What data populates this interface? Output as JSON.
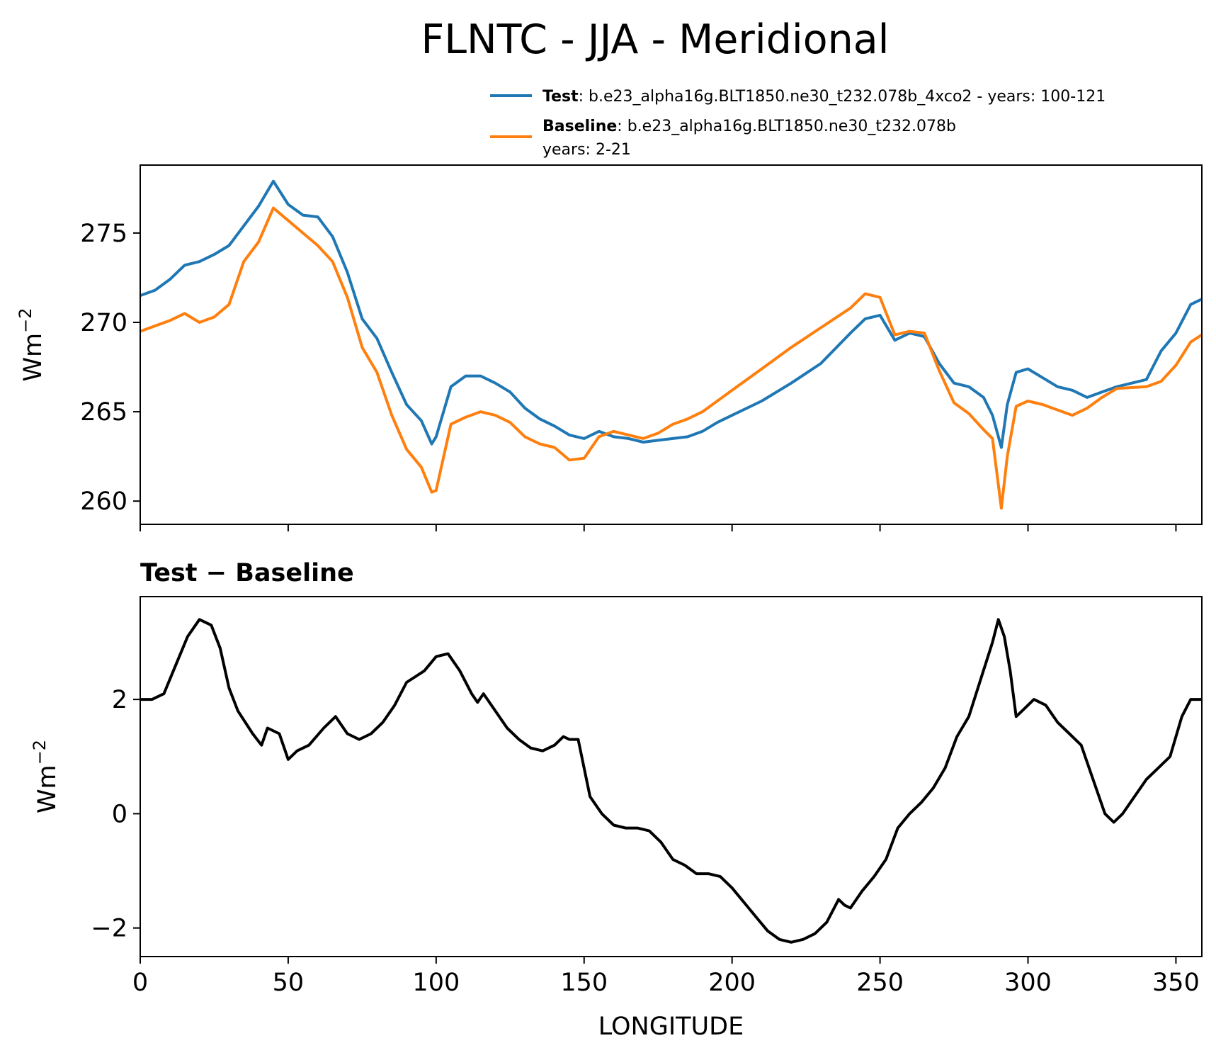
{
  "title": "FLNTC - JJA - Meridional",
  "colors": {
    "test": "#1f77b4",
    "baseline": "#ff7f0e",
    "diff": "#000000",
    "axis": "#000000"
  },
  "legend": {
    "placement": "above top panel, right",
    "test_bold": "Test",
    "test_text": ": b.e23_alpha16g.BLT1850.ne30_t232.078b_4xco2 - years: 100-121",
    "baseline_bold": "Baseline",
    "baseline_text": ": b.e23_alpha16g.BLT1850.ne30_t232.078b",
    "baseline_text2": "years: 2-21"
  },
  "chart_data": [
    {
      "type": "line",
      "title": "",
      "xlabel": "",
      "ylabel": "Wm",
      "ylabel_sup": "−2",
      "xlim": [
        0,
        358.75
      ],
      "ylim": [
        258.7,
        278.8
      ],
      "yticks": [
        260,
        265,
        270,
        275
      ],
      "ytick_labels": [
        "260",
        "265",
        "270",
        "275"
      ],
      "xticks": [
        0,
        50,
        100,
        150,
        200,
        250,
        300,
        350
      ],
      "series": [
        {
          "name": "Test",
          "x": [
            0,
            5,
            10,
            15,
            20,
            25,
            30,
            35,
            40,
            45,
            50,
            55,
            60,
            65,
            70,
            75,
            80,
            85,
            90,
            95,
            98.5,
            100,
            105,
            110,
            115,
            120,
            125,
            130,
            135,
            140,
            145,
            150,
            155,
            160,
            165,
            170,
            175,
            180,
            185,
            190,
            195,
            200,
            210,
            220,
            230,
            240,
            245,
            250,
            255,
            260,
            265,
            270,
            275,
            280,
            285,
            288,
            291,
            293,
            296,
            300,
            305,
            310,
            315,
            320,
            325,
            330,
            340,
            345,
            350,
            355,
            358.75
          ],
          "values": [
            271.5,
            271.8,
            272.4,
            273.2,
            273.4,
            273.8,
            274.3,
            275.4,
            276.5,
            277.9,
            276.6,
            276.0,
            275.9,
            274.8,
            272.8,
            270.2,
            269.1,
            267.2,
            265.4,
            264.5,
            263.2,
            263.6,
            266.4,
            267.0,
            267.0,
            266.6,
            266.1,
            265.2,
            264.6,
            264.2,
            263.7,
            263.5,
            263.9,
            263.6,
            263.5,
            263.3,
            263.4,
            263.5,
            263.6,
            263.9,
            264.4,
            264.8,
            265.6,
            266.6,
            267.7,
            269.4,
            270.2,
            270.4,
            269.0,
            269.4,
            269.2,
            267.7,
            266.6,
            266.4,
            265.8,
            264.8,
            263.0,
            265.4,
            267.2,
            267.4,
            266.9,
            266.4,
            266.2,
            265.8,
            266.1,
            266.4,
            266.8,
            268.4,
            269.4,
            271.0,
            271.3
          ]
        },
        {
          "name": "Baseline",
          "x": [
            0,
            5,
            10,
            15,
            20,
            25,
            30,
            35,
            40,
            45,
            50,
            55,
            60,
            65,
            70,
            75,
            80,
            85,
            90,
            95,
            98.5,
            100,
            105,
            110,
            115,
            120,
            125,
            130,
            135,
            140,
            145,
            150,
            155,
            160,
            165,
            170,
            175,
            180,
            185,
            190,
            195,
            200,
            210,
            220,
            230,
            240,
            245,
            250,
            255,
            260,
            265,
            270,
            275,
            280,
            285,
            288,
            291,
            293,
            296,
            300,
            305,
            310,
            315,
            320,
            325,
            330,
            340,
            345,
            350,
            355,
            358.75
          ],
          "values": [
            269.5,
            269.8,
            270.1,
            270.5,
            270.0,
            270.3,
            271.0,
            273.4,
            274.5,
            276.4,
            275.7,
            275.0,
            274.3,
            273.4,
            271.4,
            268.6,
            267.2,
            264.8,
            262.9,
            261.9,
            260.5,
            260.6,
            264.3,
            264.7,
            265.0,
            264.8,
            264.4,
            263.6,
            263.2,
            263.0,
            262.3,
            262.4,
            263.6,
            263.9,
            263.7,
            263.5,
            263.8,
            264.3,
            264.6,
            265.0,
            265.6,
            266.2,
            267.4,
            268.6,
            269.7,
            270.8,
            271.6,
            271.4,
            269.3,
            269.5,
            269.4,
            267.3,
            265.5,
            264.9,
            264.0,
            263.5,
            259.6,
            262.5,
            265.3,
            265.6,
            265.4,
            265.1,
            264.8,
            265.2,
            265.8,
            266.3,
            266.4,
            266.7,
            267.6,
            268.9,
            269.3
          ]
        }
      ]
    },
    {
      "type": "line",
      "title": "Test − Baseline",
      "xlabel": "LONGITUDE",
      "ylabel": "Wm",
      "ylabel_sup": "−2",
      "xlim": [
        0,
        358.75
      ],
      "ylim": [
        -2.5,
        3.8
      ],
      "yticks": [
        -2,
        0,
        2
      ],
      "ytick_labels": [
        "−2",
        "0",
        "2"
      ],
      "xticks": [
        0,
        50,
        100,
        150,
        200,
        250,
        300,
        350
      ],
      "xtick_labels": [
        "0",
        "50",
        "100",
        "150",
        "200",
        "250",
        "300",
        "350"
      ],
      "series": [
        {
          "name": "Test − Baseline",
          "x": [
            0,
            4,
            8,
            12,
            16,
            20,
            24,
            27,
            30,
            33,
            38,
            41,
            43,
            47,
            50,
            53,
            57,
            62,
            66,
            70,
            74,
            78,
            82,
            86,
            90,
            96,
            100,
            104,
            108,
            112,
            114,
            116,
            120,
            124,
            128,
            132,
            136,
            140,
            143,
            145,
            148,
            152,
            156,
            160,
            164,
            168,
            172,
            176,
            180,
            184,
            188,
            192,
            196,
            200,
            204,
            208,
            212,
            216,
            220,
            224,
            228,
            232,
            236,
            238,
            240,
            244,
            248,
            252,
            256,
            260,
            264,
            268,
            272,
            276,
            280,
            284,
            288,
            290,
            292,
            294,
            296,
            298,
            302,
            306,
            310,
            314,
            318,
            322,
            326,
            329,
            332,
            336,
            340,
            344,
            348,
            352,
            355,
            358.75
          ],
          "values": [
            2.0,
            2.0,
            2.1,
            2.6,
            3.1,
            3.4,
            3.3,
            2.9,
            2.2,
            1.8,
            1.4,
            1.2,
            1.5,
            1.4,
            0.95,
            1.1,
            1.2,
            1.5,
            1.7,
            1.4,
            1.3,
            1.4,
            1.6,
            1.9,
            2.3,
            2.5,
            2.75,
            2.8,
            2.5,
            2.1,
            1.95,
            2.1,
            1.8,
            1.5,
            1.3,
            1.15,
            1.1,
            1.2,
            1.35,
            1.3,
            1.3,
            0.3,
            0.0,
            -0.2,
            -0.25,
            -0.25,
            -0.3,
            -0.5,
            -0.8,
            -0.9,
            -1.05,
            -1.05,
            -1.1,
            -1.3,
            -1.55,
            -1.8,
            -2.05,
            -2.2,
            -2.25,
            -2.2,
            -2.1,
            -1.9,
            -1.5,
            -1.6,
            -1.65,
            -1.35,
            -1.1,
            -0.8,
            -0.25,
            0.0,
            0.2,
            0.45,
            0.8,
            1.35,
            1.7,
            2.35,
            3.0,
            3.4,
            3.1,
            2.5,
            1.7,
            1.8,
            2.0,
            1.9,
            1.6,
            1.4,
            1.2,
            0.6,
            0.0,
            -0.15,
            0.0,
            0.3,
            0.6,
            0.8,
            1.0,
            1.7,
            2.0,
            2.0
          ]
        }
      ]
    }
  ]
}
